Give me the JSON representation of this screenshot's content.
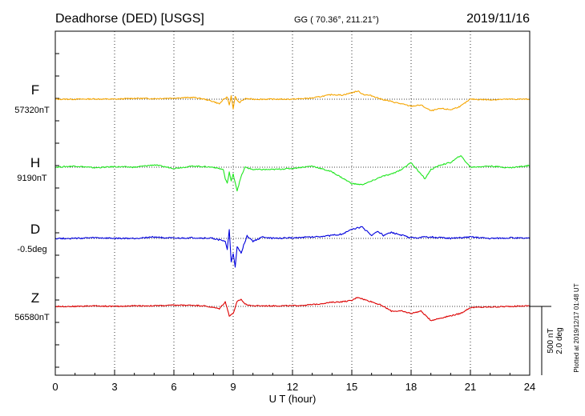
{
  "chart_data": {
    "type": "line",
    "title": "Deadhorse (DED)  [USGS]",
    "coords": "GG ( 70.36°, 211.21°)",
    "date": "2019/11/16",
    "xlabel": "U T (hour)",
    "xlim": [
      0,
      24
    ],
    "xticks": [
      "0",
      "3",
      "6",
      "9",
      "12",
      "15",
      "18",
      "21",
      "24"
    ],
    "grid": true,
    "scale_labels": [
      "500 nT",
      "2.0 deg"
    ],
    "plotted_note": "Plotted at 2019/12/17 01:48 UT",
    "series": [
      {
        "name": "F",
        "baseline_label": "57320nT",
        "color": "#f5a500",
        "unit": "nT",
        "baseline": 57320,
        "x": [
          0,
          1,
          2,
          3,
          4,
          5,
          6,
          7,
          7.5,
          8,
          8.3,
          8.5,
          8.7,
          8.8,
          8.9,
          9.0,
          9.1,
          9.3,
          9.6,
          10,
          11,
          12,
          13,
          14,
          14.5,
          15,
          15.3,
          15.6,
          16,
          16.5,
          17,
          17.5,
          18,
          18.5,
          19,
          19.5,
          20,
          20.5,
          21,
          22,
          23,
          24
        ],
        "values": [
          0,
          0,
          2,
          0,
          8,
          5,
          10,
          15,
          2,
          -20,
          -40,
          -5,
          20,
          -50,
          30,
          -80,
          20,
          -30,
          5,
          0,
          0,
          0,
          10,
          40,
          35,
          55,
          70,
          40,
          30,
          0,
          -20,
          -40,
          -60,
          -50,
          -100,
          -80,
          -90,
          -60,
          0,
          -5,
          0,
          0
        ]
      },
      {
        "name": "H",
        "baseline_label": "9190nT",
        "color": "#1ee61e",
        "unit": "nT",
        "baseline": 9190,
        "x": [
          0,
          1,
          2,
          3,
          4,
          5,
          6,
          7,
          8,
          8.5,
          8.6,
          8.7,
          8.8,
          8.9,
          9.0,
          9.2,
          9.4,
          9.6,
          10,
          11,
          12,
          13,
          14,
          15,
          15.5,
          16,
          16.5,
          17,
          17.5,
          18,
          18.3,
          18.7,
          19,
          19.5,
          20,
          20.5,
          21,
          22,
          23,
          24
        ],
        "values": [
          0,
          10,
          -5,
          5,
          0,
          20,
          -10,
          10,
          0,
          -20,
          -100,
          -140,
          -40,
          -120,
          -60,
          -200,
          -80,
          0,
          -20,
          -20,
          -10,
          10,
          -40,
          -140,
          -150,
          -120,
          -80,
          -60,
          -20,
          40,
          -20,
          -100,
          -20,
          20,
          40,
          100,
          0,
          10,
          -5,
          15
        ]
      },
      {
        "name": "D",
        "baseline_label": "-0.5deg",
        "color": "#0000dd",
        "unit": "deg",
        "baseline": -0.5,
        "x": [
          0,
          1,
          2,
          3,
          4,
          5,
          6,
          7,
          8,
          8.6,
          8.7,
          8.8,
          8.9,
          9.0,
          9.1,
          9.2,
          9.4,
          9.7,
          10,
          10.5,
          11,
          12,
          13,
          14,
          14.5,
          15,
          15.5,
          16,
          16.3,
          16.6,
          17,
          18,
          19,
          20,
          21,
          22,
          23,
          24
        ],
        "values": [
          0,
          0,
          0.02,
          0,
          0,
          0.05,
          0,
          0.02,
          0,
          -0.1,
          -0.4,
          0.3,
          -0.8,
          -0.5,
          -1.0,
          -0.3,
          -0.5,
          0.1,
          -0.1,
          0.05,
          0,
          0.02,
          0.05,
          0.1,
          0.15,
          0.3,
          0.4,
          0.1,
          0.25,
          0.1,
          0.2,
          0.02,
          0.05,
          0,
          0.05,
          0,
          0.02,
          0
        ]
      },
      {
        "name": "Z",
        "baseline_label": "56580nT",
        "color": "#dd0000",
        "unit": "nT",
        "baseline": 56580,
        "x": [
          0,
          1,
          2,
          3,
          4,
          5,
          6,
          7,
          7.5,
          8,
          8.3,
          8.6,
          8.8,
          9.0,
          9.2,
          9.4,
          9.6,
          10,
          11,
          12,
          13,
          14,
          14.5,
          15,
          15.3,
          15.6,
          16,
          16.5,
          17,
          17.5,
          18,
          18.5,
          19,
          19.5,
          20,
          20.5,
          21,
          22,
          23,
          24
        ],
        "values": [
          0,
          0,
          5,
          0,
          5,
          5,
          10,
          10,
          5,
          -10,
          -20,
          40,
          -80,
          -60,
          40,
          60,
          20,
          5,
          5,
          5,
          15,
          35,
          40,
          50,
          80,
          60,
          40,
          10,
          -40,
          -40,
          -60,
          -40,
          -120,
          -100,
          -80,
          -60,
          -10,
          -5,
          0,
          5
        ]
      }
    ]
  }
}
